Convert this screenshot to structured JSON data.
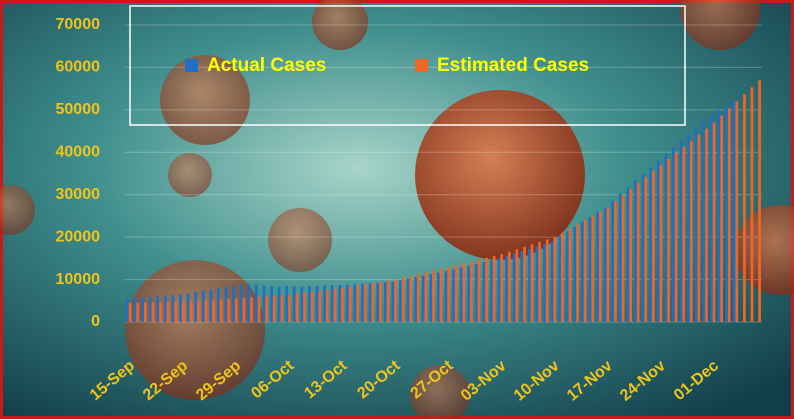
{
  "chart_data": {
    "type": "bar",
    "categories": [
      "15-Sep",
      null,
      null,
      null,
      null,
      null,
      null,
      "22-Sep",
      null,
      null,
      null,
      null,
      null,
      null,
      "29-Sep",
      null,
      null,
      null,
      null,
      null,
      null,
      "06-Oct",
      null,
      null,
      null,
      null,
      null,
      null,
      "13-Oct",
      null,
      null,
      null,
      null,
      null,
      null,
      "20-Oct",
      null,
      null,
      null,
      null,
      null,
      null,
      "27-Oct",
      null,
      null,
      null,
      null,
      null,
      null,
      "03-Nov",
      null,
      null,
      null,
      null,
      null,
      null,
      "10-Nov",
      null,
      null,
      null,
      null,
      null,
      null,
      "17-Nov",
      null,
      null,
      null,
      null,
      null,
      null,
      "24-Nov",
      null,
      null,
      null,
      null,
      null,
      null,
      "01-Dec",
      null,
      null,
      null,
      null,
      null,
      null
    ],
    "series": [
      {
        "name": "Actual Cases",
        "color": "#1f6fc5",
        "values": [
          5500,
          5640,
          5790,
          5930,
          6070,
          6210,
          6360,
          6500,
          6790,
          7070,
          7360,
          7640,
          7930,
          8210,
          8500,
          8700,
          8900,
          8800,
          8600,
          8400,
          8300,
          8500,
          8400,
          8300,
          8400,
          8500,
          8600,
          8700,
          8700,
          8800,
          8900,
          9000,
          9100,
          9200,
          9400,
          9500,
          9860,
          10210,
          10570,
          10930,
          11290,
          11640,
          12000,
          12430,
          12860,
          13290,
          13710,
          14140,
          14570,
          15000,
          15570,
          16140,
          16710,
          17290,
          17860,
          18430,
          19000,
          20140,
          21290,
          22430,
          23570,
          24710,
          25860,
          27000,
          28570,
          30140,
          31710,
          33290,
          34860,
          36430,
          38000,
          39570,
          41140,
          42710,
          44290,
          45860,
          47430,
          49000,
          50000,
          51000,
          52000,
          null,
          null,
          null
        ]
      },
      {
        "name": "Estimated Cases",
        "color": "#f26522",
        "values": [
          4500,
          4540,
          4590,
          4630,
          4670,
          4710,
          4760,
          4800,
          4900,
          5000,
          5100,
          5200,
          5300,
          5400,
          5500,
          5640,
          5790,
          5930,
          6070,
          6210,
          6360,
          6500,
          6710,
          6930,
          7140,
          7360,
          7570,
          7790,
          8000,
          8290,
          8570,
          8860,
          9140,
          9430,
          9710,
          10000,
          10430,
          10860,
          11290,
          11710,
          12140,
          12570,
          13000,
          13430,
          13860,
          14290,
          14710,
          15140,
          15570,
          16000,
          16570,
          17140,
          17710,
          18290,
          18860,
          19430,
          20000,
          21000,
          22000,
          23000,
          24000,
          25000,
          26000,
          27000,
          28430,
          29860,
          31290,
          32710,
          34140,
          35570,
          37000,
          38430,
          39860,
          41290,
          42710,
          44140,
          45570,
          47000,
          48670,
          50330,
          52000,
          53670,
          55330,
          57000
        ]
      }
    ],
    "ylim": [
      0,
      70000
    ],
    "yticks": [
      0,
      10000,
      20000,
      30000,
      40000,
      50000,
      60000,
      70000
    ],
    "grid": true
  }
}
